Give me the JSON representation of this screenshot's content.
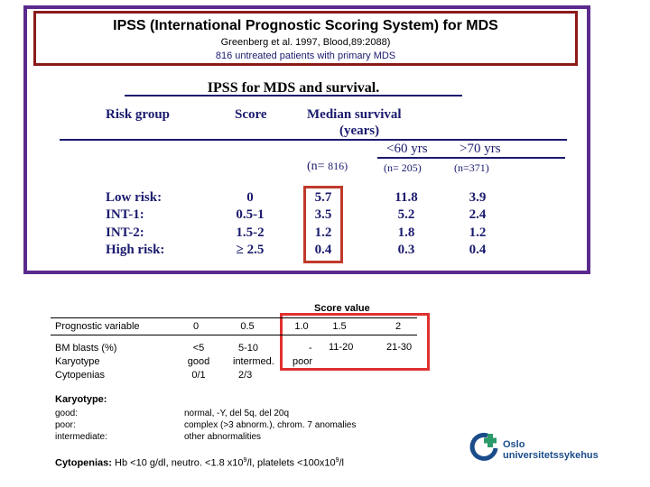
{
  "top": {
    "title": "IPSS (International Prognostic Scoring System) for MDS",
    "citation": "Greenberg et al. 1997, Blood,89:2088)",
    "subtitle": "816 untreated patients with primary MDS"
  },
  "survival": {
    "title": "IPSS for MDS and survival.",
    "headers": {
      "risk_group": "Risk group",
      "score": "Score",
      "median_line1": "Median survival",
      "median_line2": "(years)",
      "lt60": "<60 yrs",
      "gt70": ">70 yrs"
    },
    "n_labels": {
      "all_prefix": "(n=",
      "all_value": "816)",
      "lt60": "(n= 205)",
      "gt70": "(n=371)"
    },
    "rows": [
      {
        "risk": "Low risk:",
        "score": "0",
        "median": "5.7",
        "lt60": "11.8",
        "gt70": "3.9"
      },
      {
        "risk": "INT-1:",
        "score": "0.5-1",
        "median": "3.5",
        "lt60": "5.2",
        "gt70": "2.4"
      },
      {
        "risk": "INT-2:",
        "score": "1.5-2",
        "median": "1.2",
        "lt60": "1.8",
        "gt70": "1.2"
      },
      {
        "risk": "High risk:",
        "score": "≥ 2.5",
        "median": "0.4",
        "lt60": "0.3",
        "gt70": "0.4"
      }
    ]
  },
  "score_table": {
    "score_value_label": "Score value",
    "prognostic_label": "Prognostic variable",
    "score_columns": [
      "0",
      "0.5",
      "1.0",
      "1.5",
      "2"
    ],
    "variables": [
      "BM blasts (%)",
      "Karyotype",
      "Cytopenias"
    ],
    "col0": [
      "<5",
      "good",
      "0/1"
    ],
    "col05": [
      "5-10",
      "intermed.",
      "2/3"
    ],
    "col10": [
      "-",
      "poor"
    ],
    "col15": [
      "11-20"
    ],
    "col2": [
      "21-30"
    ]
  },
  "karyotype": {
    "heading": "Karyotype:",
    "labels": [
      "good:",
      "poor:",
      "intermediate:"
    ],
    "values": [
      "normal, -Y, del 5q, del 20q",
      "complex (>3 abnorm.), chrom. 7 anomalies",
      "other abnormalities"
    ]
  },
  "cytopenias": {
    "label": "Cytopenias:",
    "text_a": "Hb <10 g/dl, neutro. <1.8 x10",
    "sup_a": "9",
    "text_b": "/l, platelets <100x10",
    "sup_b": "9",
    "text_c": "/l"
  },
  "logo": {
    "line1": "Oslo",
    "line2": "universitetssykehus"
  }
}
